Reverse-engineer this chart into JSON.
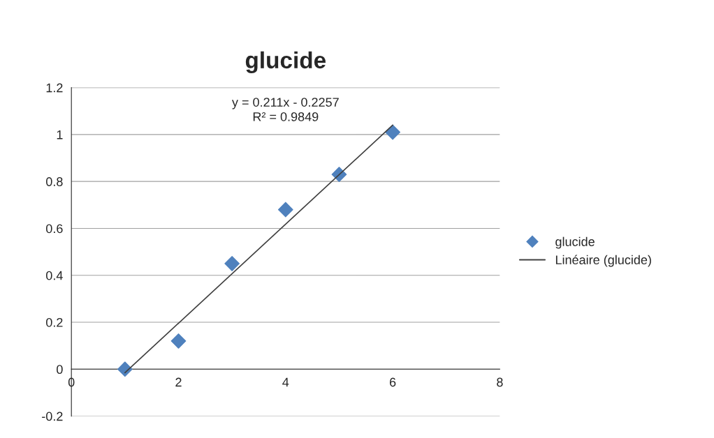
{
  "chart_data": {
    "type": "scatter",
    "title": "glucide",
    "xlim": [
      0,
      8
    ],
    "xticks": [
      0,
      2,
      4,
      6,
      8
    ],
    "ylim": [
      -0.2,
      1.2
    ],
    "yticks": [
      -0.2,
      0,
      0.2,
      0.4,
      0.6,
      0.8,
      1,
      1.2
    ],
    "grid": "y",
    "legend": "right",
    "marker": "diamond",
    "series": [
      {
        "name": "glucide",
        "color": "#4f81bd",
        "x": [
          1,
          2,
          3,
          4,
          5,
          6
        ],
        "values": [
          0,
          0.12,
          0.45,
          0.68,
          0.83,
          1.01
        ]
      },
      {
        "name": "Linéaire (glucide)",
        "type": "line",
        "color": "#404040",
        "x": [
          1,
          6
        ],
        "values": [
          -0.015,
          1.04
        ],
        "marker": "none"
      }
    ],
    "annotations": [
      "y = 0.211x - 0.2257\nR² = 0.9849"
    ]
  }
}
